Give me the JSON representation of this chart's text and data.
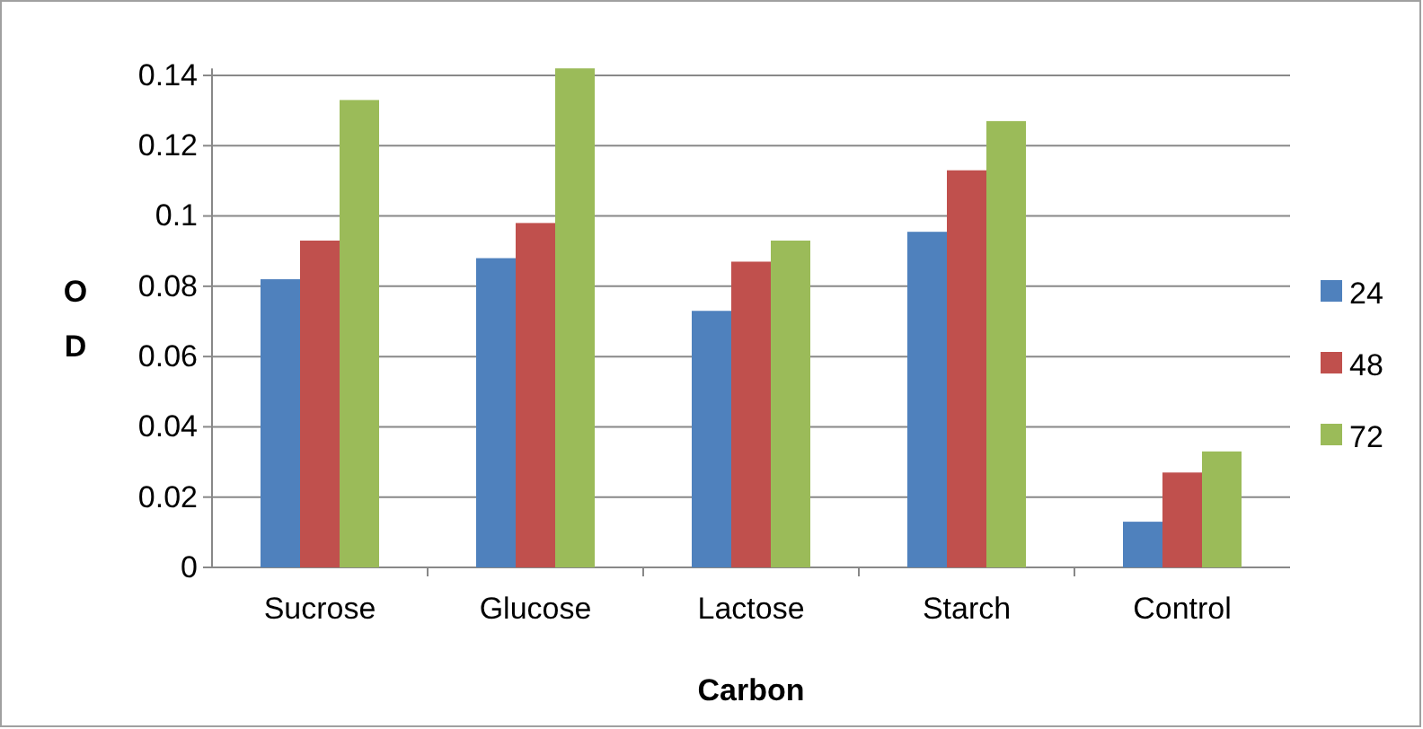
{
  "chart_data": {
    "type": "bar",
    "xlabel": "Carbon",
    "ylabel": "OD",
    "categories": [
      "Sucrose",
      "Glucose",
      "Lactose",
      "Starch",
      "Control"
    ],
    "series": [
      {
        "name": "24",
        "color": "#4f81bd",
        "values": [
          0.082,
          0.088,
          0.073,
          0.0955,
          0.013
        ]
      },
      {
        "name": "48",
        "color": "#c0504d",
        "values": [
          0.093,
          0.098,
          0.087,
          0.113,
          0.027
        ]
      },
      {
        "name": "72",
        "color": "#9bbb59",
        "values": [
          0.133,
          0.142,
          0.093,
          0.127,
          0.033
        ]
      }
    ],
    "ylim": [
      0,
      0.142
    ],
    "yticks": [
      0,
      0.02,
      0.04,
      0.06,
      0.08,
      0.1,
      0.12,
      0.14
    ],
    "grid": "y",
    "legend": "right"
  }
}
